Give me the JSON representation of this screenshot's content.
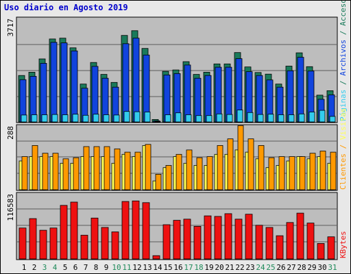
{
  "title": "Uso diario en Agosto 2019",
  "colors": {
    "accesos": "#1a7a5a",
    "archivos": "#1144dd",
    "paginas": "#33ccee",
    "visitas": "#ffff55",
    "clientes": "#ff9900",
    "kbytes": "#ee1111",
    "weekend_label": "#1f8a5a",
    "weekday_label": "#000000",
    "panel_bg": "#bdbdbd"
  },
  "legends": {
    "top": {
      "accesos": "Accesos",
      "sep1": " / ",
      "archivos": "Archivos",
      "sep2": " / ",
      "paginas": "Páginas"
    },
    "middle": {
      "visitas": "Visitas",
      "sep": " / ",
      "clientes": "Clientes"
    },
    "bottom": {
      "kbytes": "KBytes"
    }
  },
  "chart_data": [
    {
      "type": "bar",
      "categories": [
        "1",
        "2",
        "3",
        "4",
        "5",
        "6",
        "7",
        "8",
        "9",
        "10",
        "11",
        "12",
        "13",
        "14",
        "15",
        "16",
        "17",
        "18",
        "19",
        "20",
        "21",
        "22",
        "23",
        "24",
        "25",
        "26",
        "27",
        "28",
        "29",
        "30",
        "31"
      ],
      "weekend_days": [
        3,
        4,
        10,
        11,
        17,
        18,
        24,
        25,
        31
      ],
      "ymax_label": "3717",
      "ylim": [
        0,
        3717
      ],
      "series": [
        {
          "name": "Accesos",
          "values": [
            1680,
            1800,
            2280,
            3000,
            3030,
            2680,
            1370,
            2150,
            1720,
            1430,
            3130,
            3300,
            2660,
            90,
            1830,
            1880,
            2180,
            1720,
            1800,
            2100,
            2100,
            2510,
            1990,
            1790,
            1730,
            1370,
            2020,
            2500,
            2000,
            970,
            1130
          ]
        },
        {
          "name": "Archivos",
          "values": [
            1530,
            1650,
            2120,
            2880,
            2860,
            2570,
            1220,
            2010,
            1580,
            1260,
            2830,
            3030,
            2420,
            40,
            1700,
            1750,
            2060,
            1580,
            1680,
            1980,
            1980,
            2290,
            1820,
            1680,
            1520,
            1260,
            1850,
            2340,
            1840,
            820,
            980
          ]
        },
        {
          "name": "Páginas",
          "values": [
            250,
            260,
            260,
            270,
            260,
            280,
            240,
            280,
            260,
            250,
            380,
            370,
            360,
            20,
            260,
            330,
            260,
            230,
            230,
            290,
            270,
            430,
            340,
            270,
            280,
            260,
            260,
            290,
            360,
            420,
            200
          ]
        }
      ]
    },
    {
      "type": "bar",
      "categories": [
        "1",
        "2",
        "3",
        "4",
        "5",
        "6",
        "7",
        "8",
        "9",
        "10",
        "11",
        "12",
        "13",
        "14",
        "15",
        "16",
        "17",
        "18",
        "19",
        "20",
        "21",
        "22",
        "23",
        "24",
        "25",
        "26",
        "27",
        "28",
        "29",
        "30",
        "31"
      ],
      "ymax_label": "288",
      "ylim": [
        0,
        288
      ],
      "series": [
        {
          "name": "Visitas",
          "values": [
            130,
            150,
            150,
            150,
            120,
            120,
            150,
            150,
            150,
            120,
            160,
            150,
            200,
            40,
            100,
            150,
            120,
            110,
            110,
            160,
            160,
            180,
            170,
            140,
            100,
            110,
            130,
            150,
            140,
            150,
            120
          ]
        },
        {
          "name": "Clientes",
          "values": [
            150,
            200,
            165,
            165,
            140,
            145,
            195,
            195,
            195,
            185,
            170,
            170,
            205,
            70,
            110,
            160,
            180,
            145,
            150,
            200,
            230,
            290,
            230,
            200,
            145,
            150,
            150,
            150,
            165,
            175,
            170
          ]
        }
      ]
    },
    {
      "type": "bar",
      "categories": [
        "1",
        "2",
        "3",
        "4",
        "5",
        "6",
        "7",
        "8",
        "9",
        "10",
        "11",
        "12",
        "13",
        "14",
        "15",
        "16",
        "17",
        "18",
        "19",
        "20",
        "21",
        "22",
        "23",
        "24",
        "25",
        "26",
        "27",
        "28",
        "29",
        "30",
        "31"
      ],
      "ymax_label": "116583",
      "ylim": [
        0,
        116583
      ],
      "series": [
        {
          "name": "KBytes",
          "values": [
            56000,
            73000,
            52000,
            56000,
            97000,
            103000,
            43000,
            74000,
            57000,
            49000,
            104000,
            105000,
            102000,
            6000,
            62000,
            70000,
            72000,
            59000,
            78000,
            77000,
            82000,
            72000,
            81000,
            61000,
            57000,
            42000,
            66000,
            83000,
            65000,
            28000,
            40000
          ]
        }
      ]
    }
  ]
}
